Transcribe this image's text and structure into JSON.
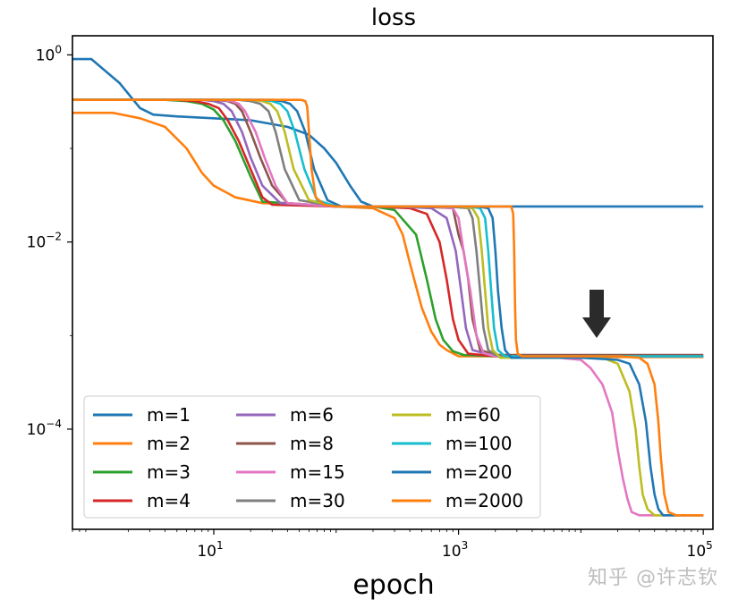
{
  "chart_data": {
    "type": "line",
    "title": "loss",
    "xlabel": "epoch",
    "ylabel": "",
    "xscale": "log",
    "yscale": "log",
    "xlim": [
      0.7,
      120000
    ],
    "ylim": [
      8.5e-06,
      1.6
    ],
    "xticks": [
      {
        "base": "10",
        "exp": "1",
        "value": 10
      },
      {
        "base": "10",
        "exp": "3",
        "value": 1000
      },
      {
        "base": "10",
        "exp": "5",
        "value": 100000
      }
    ],
    "yticks": [
      {
        "base": "10",
        "exp": "0",
        "value": 1
      },
      {
        "base": "10",
        "exp": "−2",
        "value": 0.01
      },
      {
        "base": "10",
        "exp": "−4",
        "value": 0.0001
      }
    ],
    "legend_position": "lower-left",
    "annotation": "down arrow above plateau near epoch 15000",
    "series": [
      {
        "name": "m=1",
        "color": "#1f77b4",
        "x": [
          0.7,
          1.0,
          1.7,
          2.5,
          3.2,
          5,
          10,
          20,
          40,
          60,
          80,
          100,
          130,
          160,
          200,
          300,
          1000,
          10000,
          100000
        ],
        "y": [
          0.9,
          0.9,
          0.5,
          0.27,
          0.23,
          0.22,
          0.21,
          0.2,
          0.17,
          0.14,
          0.1,
          0.07,
          0.04,
          0.027,
          0.024,
          0.024,
          0.024,
          0.024,
          0.024
        ]
      },
      {
        "name": "m=2",
        "color": "#ff7f0e",
        "x": [
          0.7,
          1.5,
          2.5,
          4,
          6,
          8,
          10,
          15,
          25,
          50,
          100,
          200,
          300,
          350,
          400,
          500,
          600,
          700,
          800,
          1000,
          2000,
          5000,
          10000,
          100000
        ],
        "y": [
          0.24,
          0.24,
          0.21,
          0.17,
          0.1,
          0.055,
          0.04,
          0.03,
          0.026,
          0.025,
          0.024,
          0.023,
          0.018,
          0.012,
          0.006,
          0.002,
          0.0011,
          0.0008,
          0.0007,
          0.0006,
          0.0006,
          0.00059,
          0.00059,
          0.00059
        ]
      },
      {
        "name": "m=3",
        "color": "#2ca02c",
        "x": [
          0.7,
          4,
          6,
          8,
          10,
          12,
          15,
          20,
          25,
          100,
          200,
          300,
          450,
          550,
          650,
          750,
          900,
          1100,
          2000,
          10000,
          100000
        ],
        "y": [
          0.33,
          0.33,
          0.32,
          0.3,
          0.26,
          0.2,
          0.12,
          0.05,
          0.027,
          0.024,
          0.024,
          0.022,
          0.012,
          0.004,
          0.0015,
          0.0009,
          0.00068,
          0.00062,
          0.0006,
          0.0006,
          0.0006
        ]
      },
      {
        "name": "m=4",
        "color": "#d62728",
        "x": [
          0.7,
          5,
          7,
          9,
          11,
          13,
          16,
          20,
          25,
          30,
          100,
          200,
          400,
          550,
          700,
          800,
          900,
          1000,
          1200,
          2000,
          10000,
          100000
        ],
        "y": [
          0.33,
          0.33,
          0.32,
          0.3,
          0.27,
          0.2,
          0.12,
          0.06,
          0.03,
          0.025,
          0.024,
          0.024,
          0.023,
          0.02,
          0.01,
          0.004,
          0.0015,
          0.0009,
          0.00064,
          0.0006,
          0.0006,
          0.0006
        ]
      },
      {
        "name": "m=6",
        "color": "#9467bd",
        "x": [
          0.7,
          8,
          10,
          12,
          14,
          17,
          20,
          25,
          35,
          100,
          300,
          600,
          800,
          950,
          1050,
          1150,
          1300,
          2000,
          10000,
          100000
        ],
        "y": [
          0.33,
          0.33,
          0.32,
          0.3,
          0.25,
          0.15,
          0.08,
          0.04,
          0.026,
          0.024,
          0.024,
          0.023,
          0.018,
          0.008,
          0.003,
          0.0012,
          0.0007,
          0.0006,
          0.0006,
          0.0006
        ]
      },
      {
        "name": "m=8",
        "color": "#8c564b",
        "x": [
          0.7,
          10,
          13,
          15,
          17,
          20,
          24,
          30,
          40,
          100,
          500,
          900,
          1000,
          1100,
          1200,
          1300,
          1500,
          2000,
          10000,
          100000
        ],
        "y": [
          0.33,
          0.33,
          0.32,
          0.3,
          0.25,
          0.15,
          0.08,
          0.04,
          0.026,
          0.024,
          0.024,
          0.023,
          0.012,
          0.008,
          0.004,
          0.0015,
          0.0007,
          0.00062,
          0.00062,
          0.00062
        ]
      },
      {
        "name": "m=15",
        "color": "#e377c2",
        "x": [
          0.7,
          11,
          14,
          16,
          18,
          22,
          26,
          32,
          40,
          100,
          600,
          900,
          1000,
          1100,
          1250,
          1400,
          1600,
          2000,
          5000,
          10000,
          12000,
          15000,
          18000,
          20000,
          22000,
          24000,
          26000,
          30000,
          100000
        ],
        "y": [
          0.33,
          0.33,
          0.32,
          0.3,
          0.25,
          0.15,
          0.08,
          0.04,
          0.026,
          0.024,
          0.024,
          0.023,
          0.018,
          0.008,
          0.003,
          0.001,
          0.00065,
          0.0006,
          0.0006,
          0.00055,
          0.00045,
          0.0003,
          0.00015,
          6e-05,
          3e-05,
          1.8e-05,
          1.3e-05,
          1.2e-05,
          1.2e-05
        ]
      },
      {
        "name": "m=30",
        "color": "#7f7f7f",
        "x": [
          0.7,
          16,
          20,
          24,
          28,
          32,
          38,
          50,
          100,
          800,
          1200,
          1300,
          1400,
          1500,
          1600,
          1750,
          2000,
          2500,
          10000,
          100000
        ],
        "y": [
          0.33,
          0.33,
          0.32,
          0.3,
          0.25,
          0.15,
          0.06,
          0.028,
          0.024,
          0.024,
          0.023,
          0.018,
          0.008,
          0.003,
          0.0012,
          0.0007,
          0.00062,
          0.0006,
          0.0006,
          0.0006
        ]
      },
      {
        "name": "m=60",
        "color": "#bcbd22",
        "x": [
          0.7,
          20,
          25,
          29,
          33,
          38,
          45,
          60,
          100,
          1000,
          1300,
          1450,
          1550,
          1650,
          1750,
          1900,
          2200,
          5000,
          15000,
          20000,
          25000,
          28000,
          30000,
          32000,
          35000,
          40000,
          100000
        ],
        "y": [
          0.33,
          0.33,
          0.32,
          0.3,
          0.25,
          0.15,
          0.06,
          0.028,
          0.024,
          0.024,
          0.023,
          0.018,
          0.008,
          0.003,
          0.0012,
          0.0007,
          0.00058,
          0.00058,
          0.00058,
          0.0005,
          0.00025,
          0.0001,
          4e-05,
          2e-05,
          1.4e-05,
          1.2e-05,
          1.2e-05
        ]
      },
      {
        "name": "m=100",
        "color": "#17becf",
        "x": [
          0.7,
          25,
          30,
          35,
          40,
          46,
          55,
          70,
          100,
          1200,
          1500,
          1650,
          1750,
          1850,
          1950,
          2100,
          2400,
          10000,
          100000
        ],
        "y": [
          0.33,
          0.33,
          0.32,
          0.3,
          0.25,
          0.15,
          0.06,
          0.028,
          0.024,
          0.024,
          0.023,
          0.018,
          0.008,
          0.003,
          0.0012,
          0.0007,
          0.0006,
          0.0006,
          0.0006
        ]
      },
      {
        "name": "m=200",
        "color": "#1f77b4",
        "x": [
          0.7,
          30,
          36,
          42,
          48,
          56,
          66,
          85,
          110,
          1400,
          1750,
          1900,
          2000,
          2100,
          2250,
          2400,
          2700,
          10000,
          20000,
          25000,
          30000,
          34000,
          37000,
          40000,
          43000,
          47000,
          55000,
          100000
        ],
        "y": [
          0.33,
          0.33,
          0.32,
          0.3,
          0.25,
          0.15,
          0.06,
          0.028,
          0.024,
          0.024,
          0.023,
          0.018,
          0.008,
          0.003,
          0.0012,
          0.0007,
          0.00058,
          0.00058,
          0.00055,
          0.0005,
          0.0003,
          0.00012,
          4e-05,
          2e-05,
          1.4e-05,
          1.2e-05,
          1.2e-05,
          1.2e-05
        ]
      },
      {
        "name": "m=2000",
        "color": "#ff7f0e",
        "x": [
          0.7,
          45,
          52,
          56,
          58,
          60,
          63,
          68,
          80,
          100,
          1500,
          2400,
          2700,
          2800,
          2850,
          2900,
          2950,
          3050,
          3300,
          10000,
          20000,
          30000,
          35000,
          40000,
          43000,
          45000,
          48000,
          52000,
          60000,
          100000
        ],
        "y": [
          0.33,
          0.33,
          0.33,
          0.32,
          0.28,
          0.15,
          0.06,
          0.03,
          0.025,
          0.024,
          0.024,
          0.024,
          0.024,
          0.02,
          0.008,
          0.002,
          0.0009,
          0.00064,
          0.0006,
          0.0006,
          0.0006,
          0.00058,
          0.0005,
          0.0003,
          0.00012,
          5e-05,
          2e-05,
          1.3e-05,
          1.2e-05,
          1.2e-05
        ]
      }
    ]
  },
  "watermark": "知乎 @许志钦"
}
